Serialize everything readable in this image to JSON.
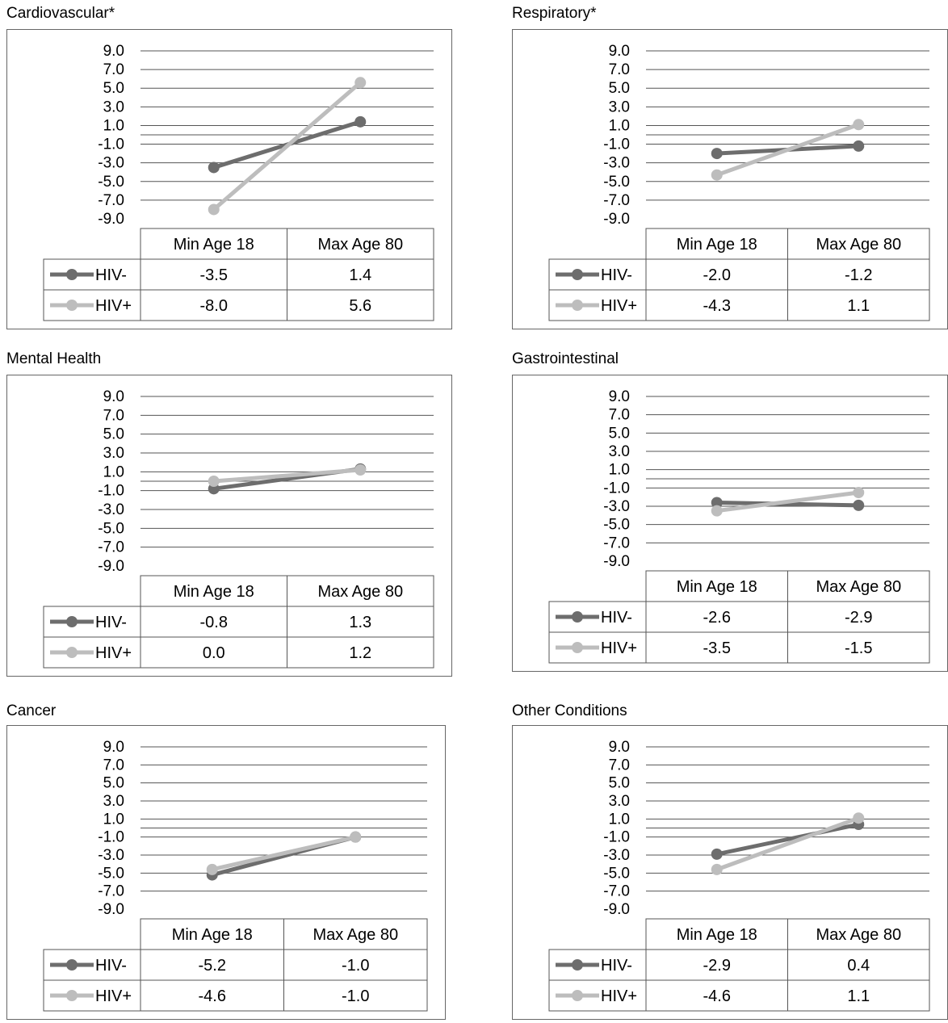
{
  "panels": [
    {
      "title": "Cardiovascular*",
      "chart_data": {
        "type": "line",
        "categories": [
          "Min Age 18",
          "Max Age 80"
        ],
        "y_ticks": [
          "9.0",
          "7.0",
          "5.0",
          "3.0",
          "1.0",
          "-1.0",
          "-3.0",
          "-5.0",
          "-7.0",
          "-9.0"
        ],
        "ylim": [
          -9,
          9
        ],
        "series": [
          {
            "name": "HIV-",
            "values": [
              -3.5,
              1.4
            ],
            "display": [
              "-3.5",
              "1.4"
            ],
            "color": "#6d6d6d"
          },
          {
            "name": "HIV+",
            "values": [
              -8.0,
              5.6
            ],
            "display": [
              "-8.0",
              "5.6"
            ],
            "color": "#bdbdbd"
          }
        ]
      }
    },
    {
      "title": "Respiratory*",
      "chart_data": {
        "type": "line",
        "categories": [
          "Min Age 18",
          "Max Age 80"
        ],
        "y_ticks": [
          "9.0",
          "7.0",
          "5.0",
          "3.0",
          "1.0",
          "-1.0",
          "-3.0",
          "-5.0",
          "-7.0",
          "-9.0"
        ],
        "ylim": [
          -9,
          9
        ],
        "series": [
          {
            "name": "HIV-",
            "values": [
              -2.0,
              -1.2
            ],
            "display": [
              "-2.0",
              "-1.2"
            ],
            "color": "#6d6d6d"
          },
          {
            "name": "HIV+",
            "values": [
              -4.3,
              1.1
            ],
            "display": [
              "-4.3",
              "1.1"
            ],
            "color": "#bdbdbd"
          }
        ]
      }
    },
    {
      "title": "Mental Health",
      "chart_data": {
        "type": "line",
        "categories": [
          "Min Age 18",
          "Max Age 80"
        ],
        "y_ticks": [
          "9.0",
          "7.0",
          "5.0",
          "3.0",
          "1.0",
          "-1.0",
          "-3.0",
          "-5.0",
          "-7.0",
          "-9.0"
        ],
        "ylim": [
          -9,
          9
        ],
        "series": [
          {
            "name": "HIV-",
            "values": [
              -0.8,
              1.3
            ],
            "display": [
              "-0.8",
              "1.3"
            ],
            "color": "#6d6d6d"
          },
          {
            "name": "HIV+",
            "values": [
              0.0,
              1.2
            ],
            "display": [
              "0.0",
              "1.2"
            ],
            "color": "#bdbdbd"
          }
        ]
      }
    },
    {
      "title": "Gastrointestinal",
      "chart_data": {
        "type": "line",
        "categories": [
          "Min Age 18",
          "Max Age 80"
        ],
        "y_ticks": [
          "9.0",
          "7.0",
          "5.0",
          "3.0",
          "1.0",
          "-1.0",
          "-3.0",
          "-5.0",
          "-7.0",
          "-9.0"
        ],
        "ylim": [
          -9,
          9
        ],
        "series": [
          {
            "name": "HIV-",
            "values": [
              -2.6,
              -2.9
            ],
            "display": [
              "-2.6",
              "-2.9"
            ],
            "color": "#6d6d6d"
          },
          {
            "name": "HIV+",
            "values": [
              -3.5,
              -1.5
            ],
            "display": [
              "-3.5",
              "-1.5"
            ],
            "color": "#bdbdbd"
          }
        ]
      }
    },
    {
      "title": "Cancer",
      "chart_data": {
        "type": "line",
        "categories": [
          "Min Age 18",
          "Max Age 80"
        ],
        "y_ticks": [
          "9.0",
          "7.0",
          "5.0",
          "3.0",
          "1.0",
          "-1.0",
          "-3.0",
          "-5.0",
          "-7.0",
          "-9.0"
        ],
        "ylim": [
          -9,
          9
        ],
        "series": [
          {
            "name": "HIV-",
            "values": [
              -5.2,
              -1.0
            ],
            "display": [
              "-5.2",
              "-1.0"
            ],
            "color": "#6d6d6d"
          },
          {
            "name": "HIV+",
            "values": [
              -4.6,
              -1.0
            ],
            "display": [
              "-4.6",
              "-1.0"
            ],
            "color": "#bdbdbd"
          }
        ]
      }
    },
    {
      "title": "Other Conditions",
      "chart_data": {
        "type": "line",
        "categories": [
          "Min Age 18",
          "Max Age 80"
        ],
        "y_ticks": [
          "9.0",
          "7.0",
          "5.0",
          "3.0",
          "1.0",
          "-1.0",
          "-3.0",
          "-5.0",
          "-7.0",
          "-9.0"
        ],
        "ylim": [
          -9,
          9
        ],
        "series": [
          {
            "name": "HIV-",
            "values": [
              -2.9,
              0.4
            ],
            "display": [
              "-2.9",
              "0.4"
            ],
            "color": "#6d6d6d"
          },
          {
            "name": "HIV+",
            "values": [
              -4.6,
              1.1
            ],
            "display": [
              "-4.6",
              "1.1"
            ],
            "color": "#bdbdbd"
          }
        ]
      }
    }
  ]
}
